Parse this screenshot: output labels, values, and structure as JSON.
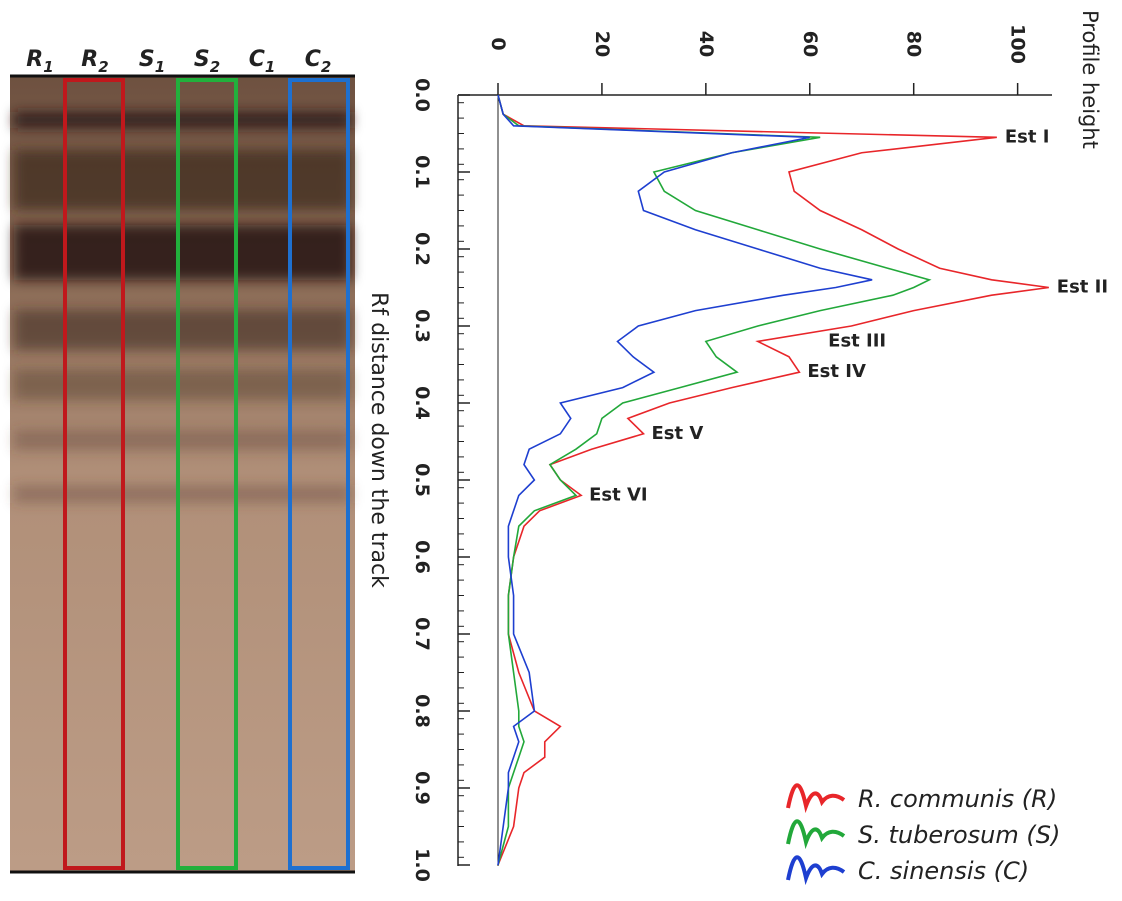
{
  "gel": {
    "lanes": [
      {
        "letter": "R",
        "sub": "1"
      },
      {
        "letter": "R",
        "sub": "2"
      },
      {
        "letter": "S",
        "sub": "1"
      },
      {
        "letter": "S",
        "sub": "2"
      },
      {
        "letter": "C",
        "sub": "1"
      },
      {
        "letter": "C",
        "sub": "2"
      }
    ]
  },
  "chart_data": {
    "type": "line",
    "x_label": "Rf distance down the track",
    "y_label": "Profile height",
    "x": [
      0,
      0.025,
      0.04,
      0.055,
      0.075,
      0.1,
      0.125,
      0.15,
      0.175,
      0.2,
      0.225,
      0.24,
      0.25,
      0.26,
      0.28,
      0.3,
      0.32,
      0.34,
      0.36,
      0.38,
      0.4,
      0.42,
      0.44,
      0.46,
      0.48,
      0.5,
      0.52,
      0.54,
      0.56,
      0.6,
      0.65,
      0.7,
      0.75,
      0.8,
      0.82,
      0.84,
      0.86,
      0.88,
      0.9,
      0.95,
      1.0
    ],
    "series": [
      {
        "name": "R. communis (R)",
        "color": "#e8262a",
        "values": [
          0,
          1,
          5,
          96,
          70,
          56,
          57,
          62,
          70,
          77,
          85,
          95,
          106,
          95,
          80,
          68,
          50,
          56,
          58,
          45,
          33,
          25,
          28,
          18,
          10,
          12,
          16,
          8,
          5,
          3,
          2,
          2,
          4,
          7,
          12,
          9,
          9,
          5,
          4,
          3,
          0
        ]
      },
      {
        "name": "S. tuberosum (S)",
        "color": "#22a83a",
        "values": [
          0,
          1,
          4,
          62,
          45,
          30,
          32,
          38,
          50,
          62,
          75,
          83,
          80,
          76,
          62,
          50,
          40,
          42,
          46,
          35,
          24,
          20,
          19,
          15,
          10,
          12,
          15,
          7,
          4,
          3,
          2,
          2,
          3,
          4,
          4,
          5,
          4,
          3,
          2,
          2,
          0
        ]
      },
      {
        "name": "C. sinensis (C)",
        "color": "#1e3fd0",
        "values": [
          0,
          1,
          3,
          60,
          45,
          32,
          27,
          28,
          38,
          50,
          62,
          72,
          65,
          55,
          38,
          27,
          23,
          26,
          30,
          24,
          12,
          14,
          12,
          6,
          5,
          7,
          4,
          3,
          2,
          2,
          3,
          3,
          6,
          7,
          3,
          4,
          3,
          2,
          2,
          1,
          0
        ]
      }
    ],
    "annotations": [
      {
        "text": "Est I",
        "x": 0.055,
        "y": 96
      },
      {
        "text": "Est II",
        "x": 0.25,
        "y": 106
      },
      {
        "text": "Est III",
        "x": 0.32,
        "y": 62
      },
      {
        "text": "Est IV",
        "x": 0.36,
        "y": 58
      },
      {
        "text": "Est V",
        "x": 0.44,
        "y": 28
      },
      {
        "text": "Est VI",
        "x": 0.52,
        "y": 16
      }
    ],
    "xlim": [
      0,
      1
    ],
    "ylim": [
      0,
      107
    ],
    "xticks": [
      {
        "value": 0,
        "label": "0.0"
      },
      0.1,
      0.2,
      0.3,
      0.4,
      0.5,
      0.6,
      0.7,
      0.8,
      0.9,
      {
        "value": 1,
        "label": "1.0"
      }
    ],
    "yticks": [
      0,
      20,
      40,
      60,
      80,
      100
    ]
  }
}
